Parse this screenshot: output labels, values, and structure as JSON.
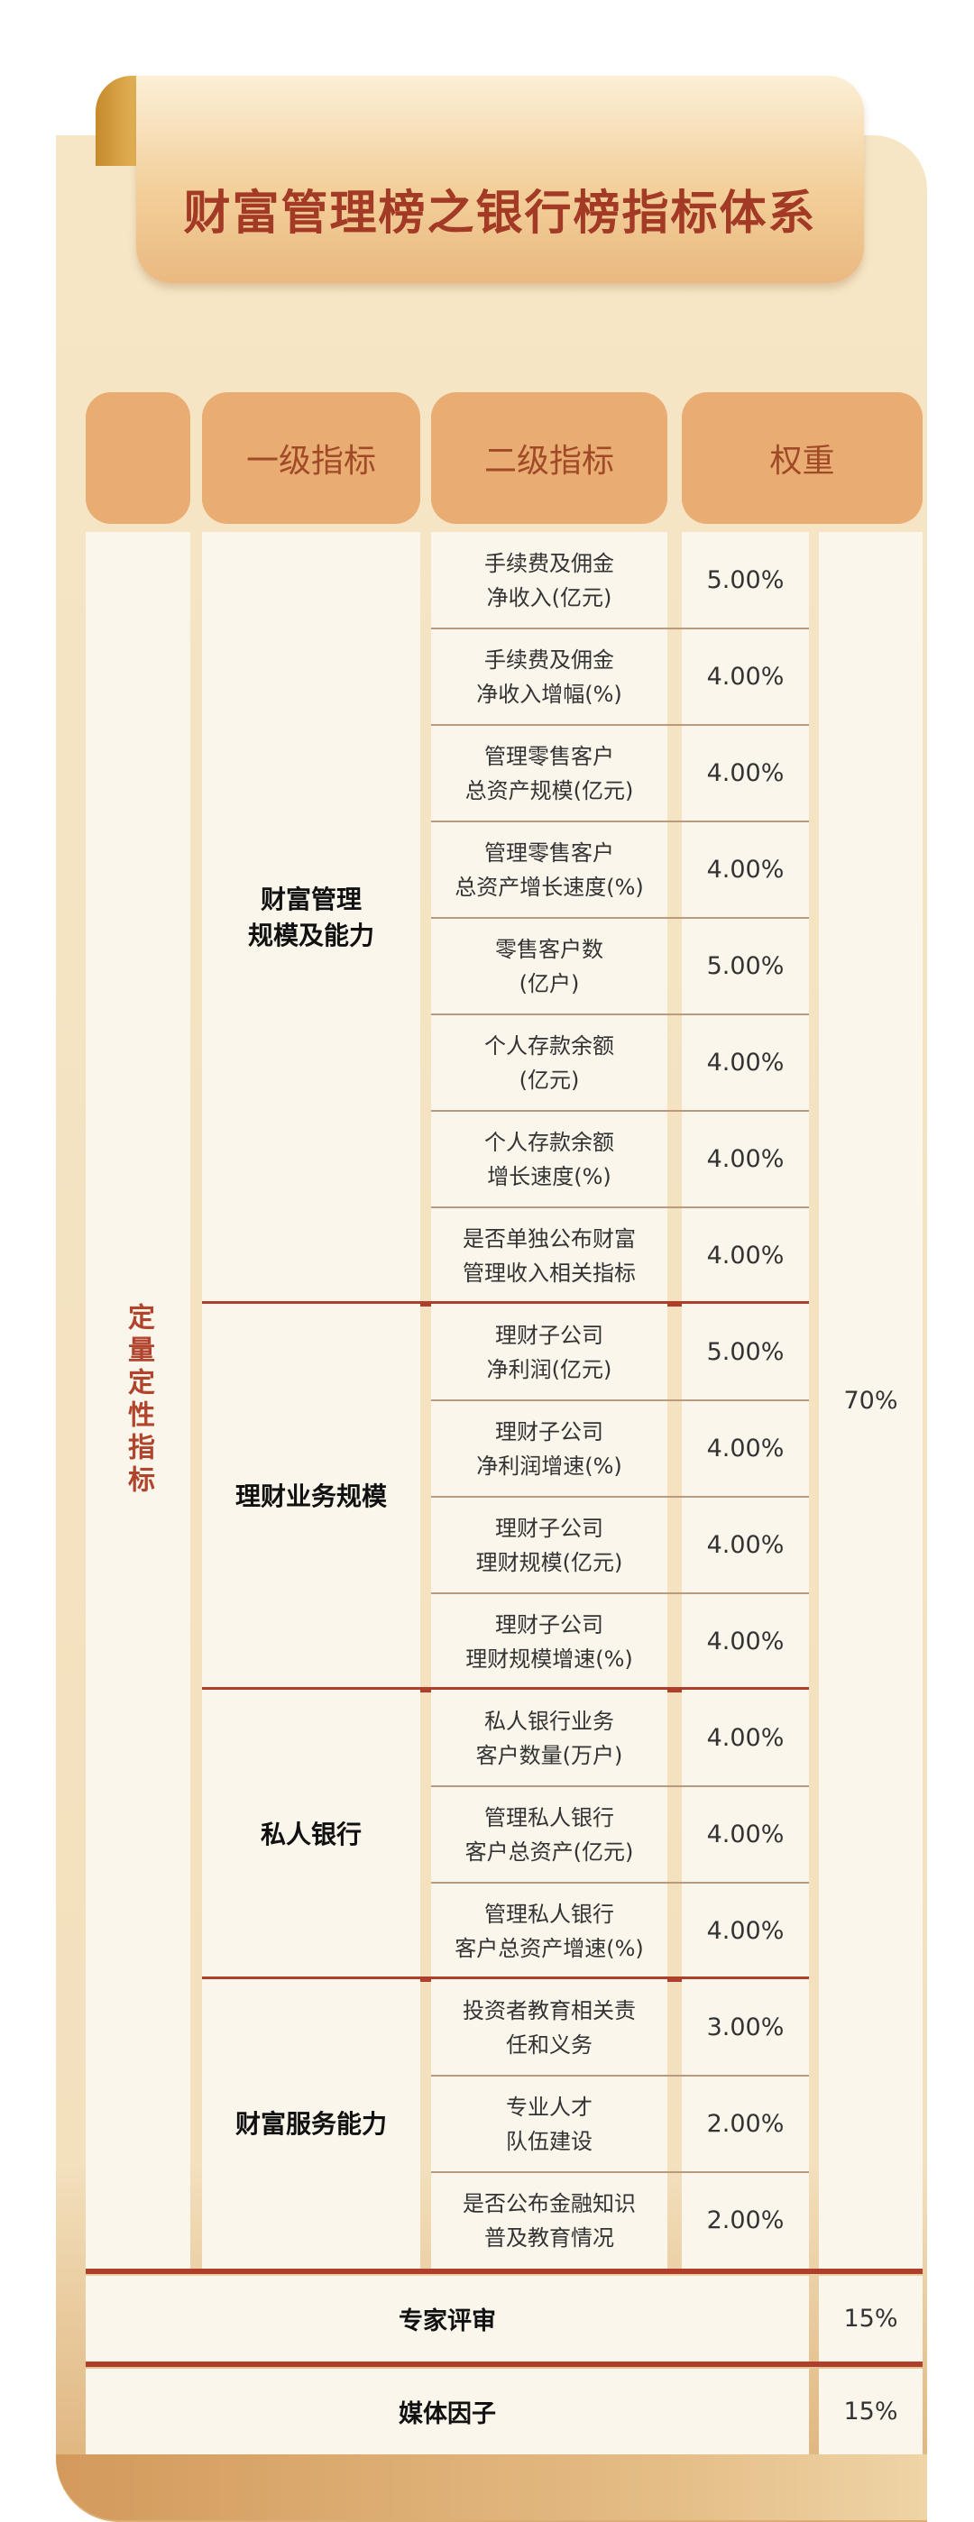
{
  "title": "财富管理榜之银行榜指标体系",
  "headers": {
    "col1": "",
    "col2": "一级指标",
    "col3": "二级指标",
    "col4": "权重"
  },
  "category": "定量定性指标",
  "category_weight": "70%",
  "groups": [
    {
      "name": "财富管理\n规模及能力",
      "items": [
        {
          "label": "手续费及佣金\n净收入(亿元)",
          "weight": "5.00%"
        },
        {
          "label": "手续费及佣金\n净收入增幅(%)",
          "weight": "4.00%"
        },
        {
          "label": "管理零售客户\n总资产规模(亿元)",
          "weight": "4.00%"
        },
        {
          "label": "管理零售客户\n总资产增长速度(%)",
          "weight": "4.00%"
        },
        {
          "label": "零售客户数\n(亿户)",
          "weight": "5.00%"
        },
        {
          "label": "个人存款余额\n(亿元)",
          "weight": "4.00%"
        },
        {
          "label": "个人存款余额\n增长速度(%)",
          "weight": "4.00%"
        },
        {
          "label": "是否单独公布财富\n管理收入相关指标",
          "weight": "4.00%"
        }
      ]
    },
    {
      "name": "理财业务规模",
      "items": [
        {
          "label": "理财子公司\n净利润(亿元)",
          "weight": "5.00%"
        },
        {
          "label": "理财子公司\n净利润增速(%)",
          "weight": "4.00%"
        },
        {
          "label": "理财子公司\n理财规模(亿元)",
          "weight": "4.00%"
        },
        {
          "label": "理财子公司\n理财规模增速(%)",
          "weight": "4.00%"
        }
      ]
    },
    {
      "name": "私人银行",
      "items": [
        {
          "label": "私人银行业务\n客户数量(万户)",
          "weight": "4.00%"
        },
        {
          "label": "管理私人银行\n客户总资产(亿元)",
          "weight": "4.00%"
        },
        {
          "label": "管理私人银行\n客户总资产增速(%)",
          "weight": "4.00%"
        }
      ]
    },
    {
      "name": "财富服务能力",
      "items": [
        {
          "label": "投资者教育相关责\n任和义务",
          "weight": "3.00%"
        },
        {
          "label": "专业人才\n队伍建设",
          "weight": "2.00%"
        },
        {
          "label": "是否公布金融知识\n普及教育情况",
          "weight": "2.00%"
        }
      ]
    }
  ],
  "extra_rows": [
    {
      "name": "专家评审",
      "weight": "15%"
    },
    {
      "name": "媒体因子",
      "weight": "15%"
    }
  ],
  "colors": {
    "accent": "#ad3f2b",
    "header": "#e9ad74",
    "cell": "#fbf6ec",
    "title": "#a33a25"
  }
}
